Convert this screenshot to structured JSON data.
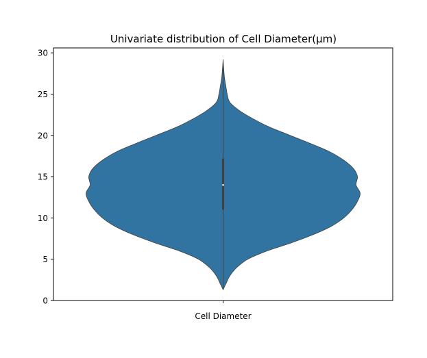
{
  "chart_data": {
    "type": "violin",
    "title": "Univariate distribution of Cell Diameter(μm)",
    "xlabel": "",
    "ylabel": "",
    "categories": [
      "Cell Diameter"
    ],
    "ylim": [
      0,
      30.6
    ],
    "yticks": [
      0,
      5,
      10,
      15,
      20,
      25,
      30
    ],
    "grid": false,
    "legend": "none",
    "color": "#3274a1",
    "edge_color": "#404040",
    "inner_box_color": "#404040",
    "median_color": "#ffffff",
    "violin": {
      "min": 1.3,
      "max": 29.2,
      "q1": 11.0,
      "median": 14.0,
      "q3": 17.2,
      "density": [
        {
          "y": 1.3,
          "w": 0.0
        },
        {
          "y": 2.0,
          "w": 0.02
        },
        {
          "y": 3.0,
          "w": 0.05
        },
        {
          "y": 4.0,
          "w": 0.1
        },
        {
          "y": 5.0,
          "w": 0.18
        },
        {
          "y": 6.0,
          "w": 0.32
        },
        {
          "y": 7.0,
          "w": 0.5
        },
        {
          "y": 8.0,
          "w": 0.66
        },
        {
          "y": 9.0,
          "w": 0.79
        },
        {
          "y": 10.0,
          "w": 0.88
        },
        {
          "y": 11.0,
          "w": 0.94
        },
        {
          "y": 12.0,
          "w": 0.98
        },
        {
          "y": 13.0,
          "w": 1.0
        },
        {
          "y": 14.0,
          "w": 0.97
        },
        {
          "y": 15.0,
          "w": 0.98
        },
        {
          "y": 16.0,
          "w": 0.95
        },
        {
          "y": 17.0,
          "w": 0.88
        },
        {
          "y": 18.0,
          "w": 0.78
        },
        {
          "y": 19.0,
          "w": 0.64
        },
        {
          "y": 20.0,
          "w": 0.49
        },
        {
          "y": 21.0,
          "w": 0.34
        },
        {
          "y": 22.0,
          "w": 0.22
        },
        {
          "y": 23.0,
          "w": 0.12
        },
        {
          "y": 24.0,
          "w": 0.05
        },
        {
          "y": 25.0,
          "w": 0.03
        },
        {
          "y": 26.0,
          "w": 0.02
        },
        {
          "y": 27.0,
          "w": 0.01
        },
        {
          "y": 28.0,
          "w": 0.005
        },
        {
          "y": 29.2,
          "w": 0.0
        }
      ]
    }
  }
}
